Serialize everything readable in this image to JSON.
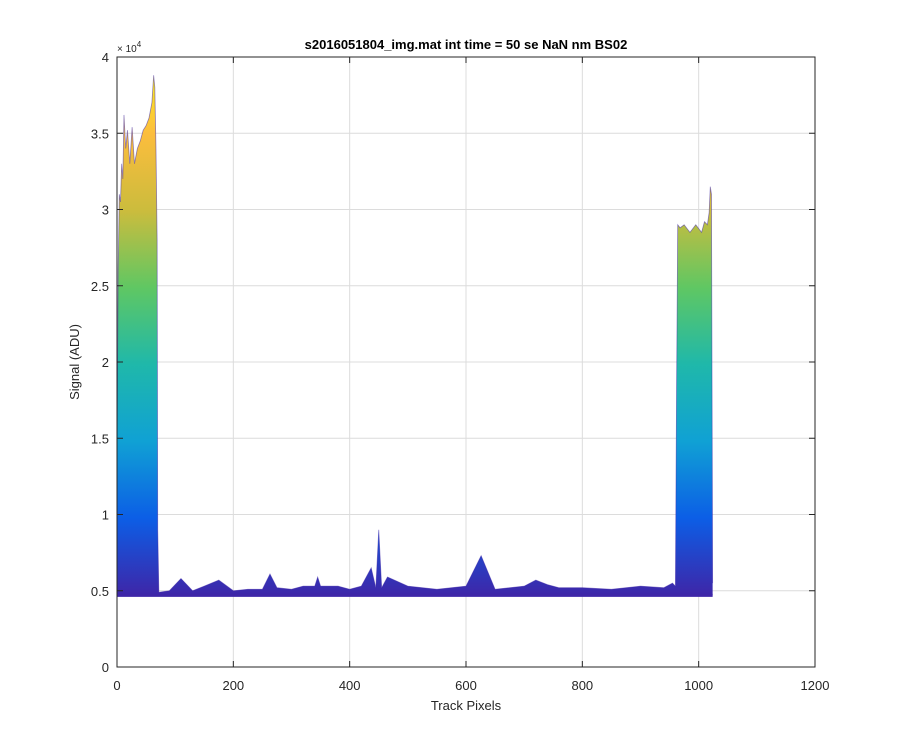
{
  "chart_data": {
    "type": "area",
    "title": "s2016051804_img.mat int time = 50 se  NaN nm BS02",
    "xlabel": "Track Pixels",
    "ylabel": "Signal (ADU)",
    "xlim": [
      0,
      1200
    ],
    "ylim": [
      0,
      40000
    ],
    "xticks": [
      0,
      200,
      400,
      600,
      800,
      1000,
      1200
    ],
    "xtick_labels": [
      "0",
      "200",
      "400",
      "600",
      "800",
      "1000",
      "1200"
    ],
    "yticks": [
      0,
      5000,
      10000,
      15000,
      20000,
      25000,
      30000,
      35000,
      40000
    ],
    "ytick_labels": [
      "0",
      "0.5",
      "1",
      "1.5",
      "2",
      "2.5",
      "3",
      "3.5",
      "4"
    ],
    "y_exponent_base": "× 10",
    "y_exponent_power": "4",
    "grid": true,
    "colormap": [
      "#3e26a8",
      "#0c5ee6",
      "#10a1d4",
      "#1fb8aa",
      "#5fc763",
      "#cbbc3d",
      "#fcbd3d",
      "#f9fb15"
    ],
    "baseline": 4700,
    "series": [
      {
        "x": [
          0,
          2,
          4,
          6,
          8,
          10,
          12,
          15,
          18,
          22,
          26,
          30,
          35,
          40,
          45,
          50,
          55,
          60,
          63,
          65,
          67,
          69,
          70,
          72,
          90,
          110,
          130,
          150,
          175,
          200,
          225,
          250,
          263,
          275,
          300,
          320,
          340,
          345,
          350,
          380,
          400,
          420,
          437,
          445,
          450,
          455,
          465,
          500,
          550,
          600,
          626,
          650,
          700,
          720,
          740,
          760,
          800,
          850,
          900,
          940,
          955,
          960,
          962,
          964,
          968,
          975,
          985,
          995,
          1005,
          1010,
          1015,
          1018,
          1020,
          1022,
          1024
        ],
        "y": [
          14000,
          26000,
          31000,
          30500,
          33000,
          32000,
          36200,
          34000,
          35200,
          33000,
          35400,
          33000,
          34000,
          34500,
          35200,
          35500,
          36000,
          37000,
          38800,
          38000,
          34000,
          28000,
          9000,
          4900,
          5000,
          5800,
          5000,
          5300,
          5700,
          5000,
          5100,
          5100,
          6100,
          5200,
          5100,
          5300,
          5300,
          5900,
          5300,
          5300,
          5100,
          5300,
          6500,
          5200,
          9000,
          5200,
          5900,
          5300,
          5100,
          5300,
          7300,
          5100,
          5300,
          5700,
          5400,
          5200,
          5200,
          5100,
          5300,
          5200,
          5500,
          5300,
          18000,
          29000,
          28800,
          29000,
          28500,
          29000,
          28500,
          29200,
          29000,
          29800,
          31500,
          31000,
          5500
        ]
      }
    ]
  }
}
